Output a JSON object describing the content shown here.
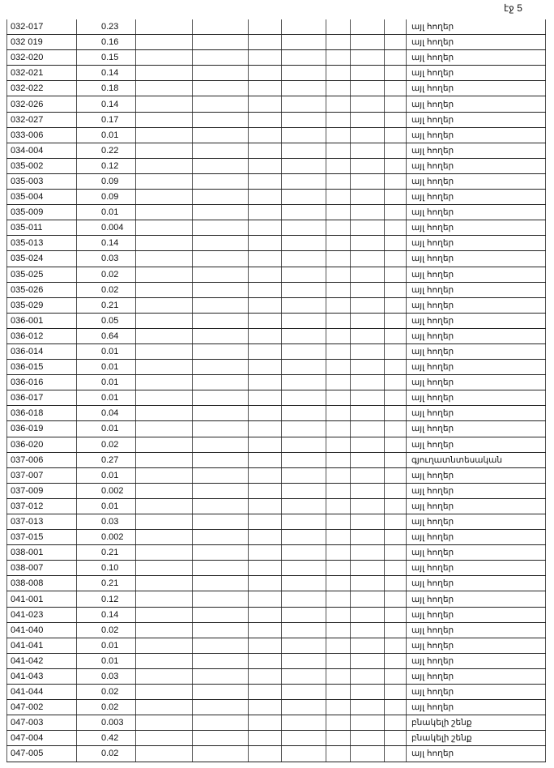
{
  "page_number": "էջ 5",
  "rows": [
    {
      "code": "032-017",
      "area": "0.23",
      "use": "այլ հողեր"
    },
    {
      "code": "032 019",
      "area": "0.16",
      "use": "այլ հողեր"
    },
    {
      "code": "032-020",
      "area": "0.15",
      "use": "այլ հողեր"
    },
    {
      "code": "032-021",
      "area": "0.14",
      "use": "այլ հողեր"
    },
    {
      "code": "032-022",
      "area": "0.18",
      "use": "այլ հողեր"
    },
    {
      "code": "032-026",
      "area": "0.14",
      "use": "այլ հողեր"
    },
    {
      "code": "032-027",
      "area": "0.17",
      "use": "այլ հողեր"
    },
    {
      "code": "033-006",
      "area": "0.01",
      "use": "այլ հողեր"
    },
    {
      "code": "034-004",
      "area": "0.22",
      "use": "այլ հողեր"
    },
    {
      "code": "035-002",
      "area": "0.12",
      "use": "այլ հողեր"
    },
    {
      "code": "035-003",
      "area": "0.09",
      "use": "այլ հողեր"
    },
    {
      "code": "035-004",
      "area": "0.09",
      "use": "այլ հողեր"
    },
    {
      "code": "035-009",
      "area": "0.01",
      "use": "այլ հողեր"
    },
    {
      "code": "035-011",
      "area": "0.004",
      "use": "այլ հողեր"
    },
    {
      "code": "035-013",
      "area": "0.14",
      "use": "այլ հողեր"
    },
    {
      "code": "035-024",
      "area": "0.03",
      "use": "այլ հողեր"
    },
    {
      "code": "035-025",
      "area": "0.02",
      "use": "այլ հողեր"
    },
    {
      "code": "035-026",
      "area": "0.02",
      "use": "այլ հողեր"
    },
    {
      "code": "035-029",
      "area": "0.21",
      "use": "այլ հողեր"
    },
    {
      "code": "036-001",
      "area": "0.05",
      "use": "այլ հողեր"
    },
    {
      "code": "036-012",
      "area": "0.64",
      "use": "այլ հողեր"
    },
    {
      "code": "036-014",
      "area": "0.01",
      "use": "այլ հողեր"
    },
    {
      "code": "036-015",
      "area": "0.01",
      "use": "այլ հողեր"
    },
    {
      "code": "036-016",
      "area": "0.01",
      "use": "այլ հողեր"
    },
    {
      "code": "036-017",
      "area": "0.01",
      "use": "այլ հողեր"
    },
    {
      "code": "036-018",
      "area": "0.04",
      "use": "այլ հողեր"
    },
    {
      "code": "036-019",
      "area": "0.01",
      "use": "այլ հողեր"
    },
    {
      "code": "036-020",
      "area": "0.02",
      "use": "այլ հողեր"
    },
    {
      "code": "037-006",
      "area": "0.27",
      "use": "գյուղատնտեսական"
    },
    {
      "code": "037-007",
      "area": "0.01",
      "use": "այլ հողեր"
    },
    {
      "code": "037-009",
      "area": "0.002",
      "use": "այլ հողեր"
    },
    {
      "code": "037-012",
      "area": "0.01",
      "use": "այլ հողեր"
    },
    {
      "code": "037-013",
      "area": "0.03",
      "use": "այլ հողեր"
    },
    {
      "code": "037-015",
      "area": "0.002",
      "use": "այլ հողեր"
    },
    {
      "code": "038-001",
      "area": "0.21",
      "use": "այլ հողեր"
    },
    {
      "code": "038-007",
      "area": "0.10",
      "use": "այլ հողեր"
    },
    {
      "code": "038-008",
      "area": "0.21",
      "use": "այլ հողեր"
    },
    {
      "code": "041-001",
      "area": "0.12",
      "use": "այլ հողեր"
    },
    {
      "code": "041-023",
      "area": "0.14",
      "use": "այլ հողեր"
    },
    {
      "code": "041-040",
      "area": "0.02",
      "use": "այլ հողեր"
    },
    {
      "code": "041-041",
      "area": "0.01",
      "use": "այլ հողեր"
    },
    {
      "code": "041-042",
      "area": "0.01",
      "use": "այլ հողեր"
    },
    {
      "code": "041-043",
      "area": "0.03",
      "use": "այլ հողեր"
    },
    {
      "code": "041-044",
      "area": "0.02",
      "use": "այլ հողեր"
    },
    {
      "code": "047-002",
      "area": "0.02",
      "use": "այլ հողեր"
    },
    {
      "code": "047-003",
      "area": "0.003",
      "use": "բնակելի շենք"
    },
    {
      "code": "047-004",
      "area": "0.42",
      "use": "բնակելի շենք"
    },
    {
      "code": "047-005",
      "area": "0.02",
      "use": "այլ հողեր"
    }
  ]
}
